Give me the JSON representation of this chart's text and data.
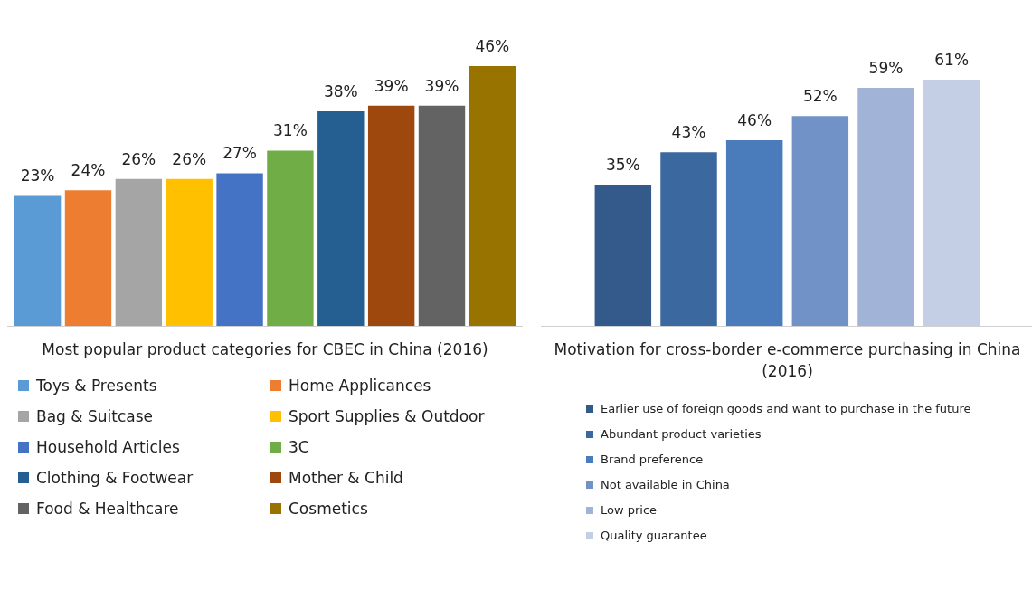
{
  "chart_data": [
    {
      "type": "bar",
      "title": "Most popular product categories for CBEC in China (2016)",
      "categories": [
        null
      ],
      "legend": "bottom",
      "data_labels": true,
      "series": [
        {
          "name": "Toys & Presents",
          "color": "#5b9bd5",
          "values": [
            23
          ],
          "value_labels": [
            "23%"
          ]
        },
        {
          "name": "Home Applicances",
          "color": "#ed7d31",
          "values": [
            24
          ],
          "value_labels": [
            "24%"
          ]
        },
        {
          "name": "Bag & Suitcase",
          "color": "#a5a5a5",
          "values": [
            26
          ],
          "value_labels": [
            "26%"
          ]
        },
        {
          "name": "Sport Supplies & Outdoor",
          "color": "#ffc000",
          "values": [
            26
          ],
          "value_labels": [
            "26%"
          ]
        },
        {
          "name": "Household Articles",
          "color": "#4472c4",
          "values": [
            27
          ],
          "value_labels": [
            "27%"
          ]
        },
        {
          "name": "3C",
          "color": "#70ad47",
          "values": [
            31
          ],
          "value_labels": [
            "31%"
          ]
        },
        {
          "name": "Clothing & Footwear",
          "color": "#255e91",
          "values": [
            38
          ],
          "value_labels": [
            "38%"
          ]
        },
        {
          "name": "Mother & Child",
          "color": "#9e480e",
          "values": [
            39
          ],
          "value_labels": [
            "39%"
          ]
        },
        {
          "name": "Food & Healthcare",
          "color": "#636363",
          "values": [
            39
          ],
          "value_labels": [
            "39%"
          ]
        },
        {
          "name": "Cosmetics",
          "color": "#997300",
          "values": [
            46
          ],
          "value_labels": [
            "46%"
          ]
        }
      ]
    },
    {
      "type": "bar",
      "title": "Motivation for cross-border e-commerce purchasing in China (2016)",
      "categories": [
        null
      ],
      "legend": "bottom",
      "data_labels": true,
      "series": [
        {
          "name": "Earlier use of foreign goods and want to purchase in the future",
          "color": "#335a8a",
          "values": [
            35
          ],
          "value_labels": [
            "35%"
          ]
        },
        {
          "name": "Abundant product varieties",
          "color": "#3b699f",
          "values": [
            43
          ],
          "value_labels": [
            "43%"
          ]
        },
        {
          "name": "Brand preference",
          "color": "#4a7cbc",
          "values": [
            46
          ],
          "value_labels": [
            "46%"
          ]
        },
        {
          "name": "Not available in China",
          "color": "#7092c6",
          "values": [
            52
          ],
          "value_labels": [
            "52%"
          ]
        },
        {
          "name": "Low price",
          "color": "#a1b4d8",
          "values": [
            59
          ],
          "value_labels": [
            "59%"
          ]
        },
        {
          "name": "Quality guarantee",
          "color": "#c4cfe5",
          "values": [
            61
          ],
          "value_labels": [
            "61%"
          ]
        }
      ]
    }
  ]
}
